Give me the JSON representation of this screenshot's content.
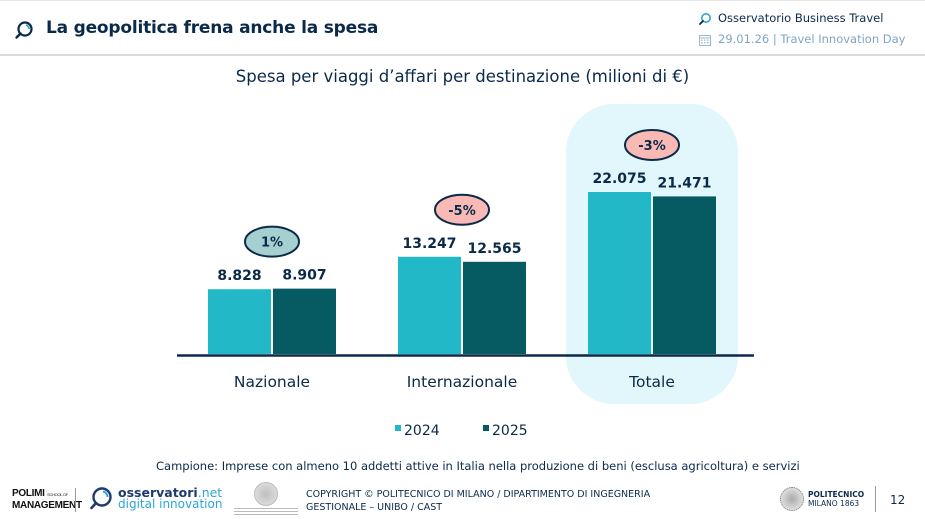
{
  "header": {
    "title": "La geopolitica frena anche la spesa",
    "title_icon": "search-logo-icon",
    "observatory": "Osservatorio Business Travel",
    "observatory_icon": "search-logo-icon",
    "event": "29.01.26 | Travel Innovation Day",
    "event_icon": "calendar-icon"
  },
  "colors": {
    "series_2024": "#22b8c8",
    "series_2025": "#065a62",
    "highlight": "#e2f7fc",
    "badge_positive": "#a6cfcf",
    "badge_negative": "#f9b9b5",
    "text_dark": "#0b2a4a"
  },
  "chart_data": {
    "type": "bar",
    "title": "Spesa per viaggi d’affari per destinazione (milioni di €)",
    "xlabel": "",
    "ylabel": "",
    "categories": [
      "Nazionale",
      "Internazionale",
      "Totale"
    ],
    "series": [
      {
        "name": "2024",
        "values": [
          8828,
          13247,
          22075
        ],
        "labels": [
          "8.828",
          "13.247",
          "22.075"
        ]
      },
      {
        "name": "2025",
        "values": [
          8907,
          12565,
          21471
        ],
        "labels": [
          "8.907",
          "12.565",
          "21.471"
        ]
      }
    ],
    "changes": [
      "1%",
      "-5%",
      "-3%"
    ],
    "change_signs": [
      "positive",
      "negative",
      "negative"
    ],
    "highlighted_category": "Totale",
    "ylim": [
      0,
      22075
    ],
    "grid": false,
    "legend": "bottom-center"
  },
  "footer": {
    "note": "Campione: Imprese con almeno 10 addetti attive in Italia nella produzione di beni (esclusa agricoltura) e servizi",
    "polimi_line1": "POLIMI",
    "polimi_small": "SCHOOL OF",
    "polimi_line2": "MANAGEMENT",
    "osservatori_name": "osservatori",
    "osservatori_tld": ".net",
    "osservatori_tagline": "digital innovation",
    "copyright_line1": "COPYRIGHT © POLITECNICO DI MILANO / DIPARTIMENTO DI INGEGNERIA",
    "copyright_line2": "GESTIONALE – UNIBO / CAST",
    "politecnico_name": "POLITECNICO",
    "politecnico_city": "MILANO 1863",
    "page_number": "12"
  }
}
